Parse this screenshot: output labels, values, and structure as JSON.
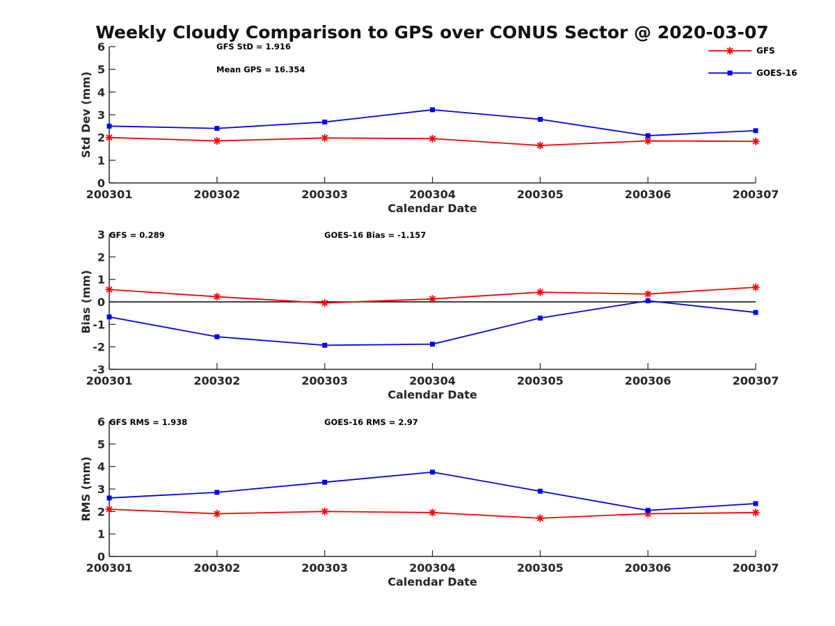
{
  "title": "Weekly Cloudy Comparison to GPS over CONUS Sector @ 2020-03-07",
  "legend": {
    "placement": "top-right",
    "entries": [
      {
        "label": "GFS",
        "color": "#ff0000",
        "marker": "asterisk"
      },
      {
        "label": "GOES-16",
        "color": "#0000ff",
        "marker": "square"
      }
    ]
  },
  "chart_data": [
    {
      "type": "line",
      "xlabel": "Calendar Date",
      "ylabel": "Std Dev (mm)",
      "categories": [
        "200301",
        "200302",
        "200303",
        "200304",
        "200305",
        "200306",
        "200307"
      ],
      "ylim": [
        0,
        6
      ],
      "yticks": [
        "0",
        "1",
        "2",
        "3",
        "4",
        "5",
        "6"
      ],
      "zero_line": false,
      "annotations": [
        "GFS StD = 1.916",
        "Mean GPS = 16.354"
      ],
      "series": [
        {
          "name": "GFS",
          "color": "#ff0000",
          "values": [
            2.0,
            1.85,
            1.98,
            1.95,
            1.65,
            1.85,
            1.83
          ]
        },
        {
          "name": "GOES-16",
          "color": "#0000ff",
          "values": [
            2.5,
            2.4,
            2.68,
            3.22,
            2.8,
            2.08,
            2.3
          ]
        }
      ]
    },
    {
      "type": "line",
      "xlabel": "Calendar Date",
      "ylabel": "Bias (mm)",
      "categories": [
        "200301",
        "200302",
        "200303",
        "200304",
        "200305",
        "200306",
        "200307"
      ],
      "ylim": [
        -3,
        3
      ],
      "yticks": [
        "-3",
        "-2",
        "-1",
        "0",
        "1",
        "2",
        "3"
      ],
      "zero_line": true,
      "annotations": [
        "GFS = 0.289",
        "GOES-16 Bias  = -1.157"
      ],
      "series": [
        {
          "name": "GFS",
          "color": "#ff0000",
          "values": [
            0.55,
            0.23,
            -0.05,
            0.13,
            0.43,
            0.35,
            0.65
          ]
        },
        {
          "name": "GOES-16",
          "color": "#0000ff",
          "values": [
            -0.67,
            -1.55,
            -1.93,
            -1.88,
            -0.72,
            0.05,
            -0.47
          ]
        }
      ]
    },
    {
      "type": "line",
      "xlabel": "Calendar Date",
      "ylabel": "RMS (mm)",
      "categories": [
        "200301",
        "200302",
        "200303",
        "200304",
        "200305",
        "200306",
        "200307"
      ],
      "ylim": [
        0,
        6
      ],
      "yticks": [
        "0",
        "1",
        "2",
        "3",
        "4",
        "5",
        "6"
      ],
      "zero_line": false,
      "annotations": [
        "GFS RMS = 1.938",
        "GOES-16 RMS = 2.97"
      ],
      "series": [
        {
          "name": "GFS",
          "color": "#ff0000",
          "values": [
            2.1,
            1.9,
            2.0,
            1.95,
            1.7,
            1.9,
            1.95
          ]
        },
        {
          "name": "GOES-16",
          "color": "#0000ff",
          "values": [
            2.6,
            2.85,
            3.3,
            3.75,
            2.9,
            2.05,
            2.35
          ]
        }
      ]
    }
  ]
}
